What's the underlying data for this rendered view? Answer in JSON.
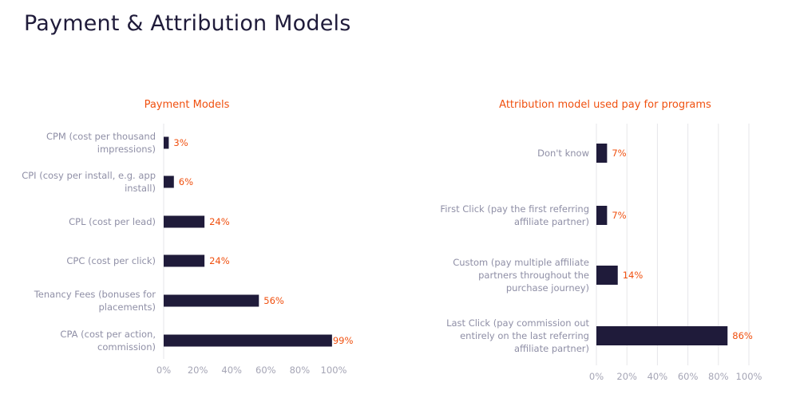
{
  "page": {
    "title": "Payment & Attribution Models"
  },
  "colors": {
    "bar": "#1f1b3a",
    "value_label": "#f0500f",
    "title": "#1f1b3a",
    "chart_title": "#f0500f",
    "category_label": "#8f8fa6",
    "grid": "#e6e6ea"
  },
  "chart_data": [
    {
      "type": "bar",
      "orientation": "horizontal",
      "title": "Payment Models",
      "categories": [
        "CPM (cost per thousand impressions)",
        "CPI (cosy per install, e.g. app install)",
        "CPL (cost per lead)",
        "CPC (cost per click)",
        "Tenancy Fees (bonuses for placements)",
        "CPA (cost per action, commission)"
      ],
      "values": [
        3,
        6,
        24,
        24,
        56,
        99
      ],
      "value_labels": [
        "3%",
        "6%",
        "24%",
        "24%",
        "56%",
        "99%"
      ],
      "xlim": [
        0,
        100
      ],
      "xticks": [
        "0%",
        "20%",
        "40%",
        "60%",
        "80%",
        "100%"
      ],
      "grid": false
    },
    {
      "type": "bar",
      "orientation": "horizontal",
      "title": "Attribution model used pay for programs",
      "categories": [
        "Don't know",
        "First Click (pay the first referring affiliate partner)",
        "Custom (pay multiple affiliate partners throughout the purchase journey)",
        "Last Click (pay commission out entirely on the last referring affiliate partner)"
      ],
      "values": [
        7,
        7,
        14,
        86
      ],
      "value_labels": [
        "7%",
        "7%",
        "14%",
        "86%"
      ],
      "xlim": [
        0,
        100
      ],
      "xticks": [
        "0%",
        "20%",
        "40%",
        "60%",
        "80%",
        "100%"
      ],
      "grid": true
    }
  ]
}
